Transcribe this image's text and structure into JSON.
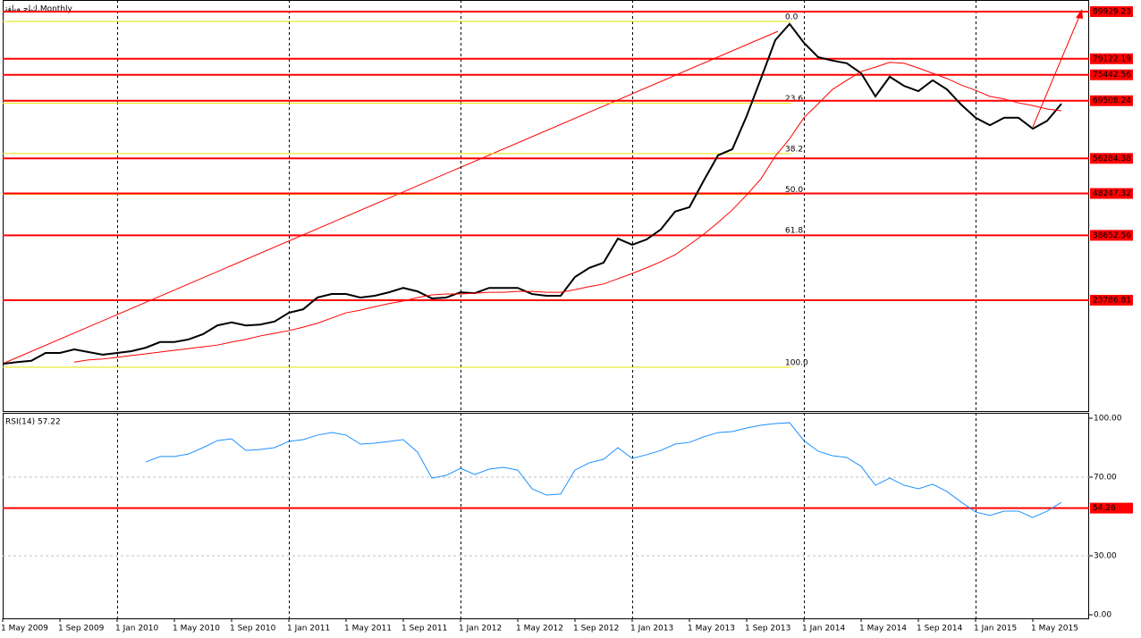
{
  "chart_data": [
    {
      "type": "line",
      "title": "ﻙﻠﺟ ﻪﻳﺎﻘﺗ,Monthly",
      "categories": [
        "1 May 2009",
        null,
        null,
        null,
        "1 Sep 2009",
        null,
        null,
        null,
        "1 Jan 2010",
        null,
        null,
        null,
        "1 May 2010",
        null,
        null,
        null,
        "1 Sep 2010",
        null,
        null,
        null,
        "1 Jan 2011",
        null,
        null,
        null,
        "1 May 2011",
        null,
        null,
        null,
        "1 Sep 2011",
        null,
        null,
        null,
        "1 Jan 2012",
        null,
        null,
        null,
        "1 May 2012",
        null,
        null,
        null,
        "1 Sep 2012",
        null,
        null,
        null,
        "1 Jan 2013",
        null,
        null,
        null,
        "1 May 2013",
        null,
        null,
        null,
        "1 Sep 2013",
        null,
        null,
        null,
        "1 Jan 2014",
        null,
        null,
        null,
        "1 May 2014",
        null,
        null,
        null,
        "1 Sep 2014",
        null,
        null,
        null,
        "1 Jan 2015",
        null,
        null,
        null,
        "1 May 2015",
        null,
        null
      ],
      "series": [
        {
          "color": "#000000",
          "values": [
            9200,
            9600,
            9900,
            11700,
            11700,
            12500,
            11900,
            11300,
            11700,
            12100,
            12900,
            14200,
            14200,
            14800,
            16000,
            18000,
            18700,
            18000,
            18200,
            18900,
            20900,
            21700,
            24400,
            25200,
            25200,
            24400,
            24800,
            25600,
            26600,
            25800,
            24200,
            24400,
            25600,
            25400,
            26600,
            26600,
            26600,
            25200,
            24800,
            24800,
            29100,
            31200,
            32400,
            37900,
            36500,
            37700,
            40000,
            44100,
            45100,
            51200,
            57000,
            58400,
            66000,
            74600,
            83400,
            87100,
            82800,
            79500,
            78700,
            78100,
            75800,
            70500,
            75000,
            72900,
            71700,
            74200,
            72100,
            68600,
            65600,
            63900,
            65600,
            65600,
            63100,
            64900,
            68800
          ]
        },
        {
          "color": "#ff0000",
          "values": [
            null,
            null,
            null,
            null,
            null,
            9600,
            10100,
            10300,
            10700,
            11100,
            11500,
            11900,
            12300,
            12700,
            13100,
            13500,
            14200,
            14800,
            15600,
            16200,
            16800,
            17600,
            18500,
            19700,
            20900,
            21500,
            22300,
            23000,
            23600,
            24400,
            25000,
            25200,
            25200,
            25400,
            25600,
            25600,
            25800,
            25800,
            25600,
            25600,
            26200,
            26900,
            27500,
            28700,
            29900,
            31200,
            32600,
            34200,
            36500,
            38900,
            41600,
            44500,
            47900,
            51600,
            56800,
            60800,
            65600,
            68800,
            72100,
            74200,
            76200,
            77200,
            78300,
            78100,
            77000,
            75800,
            74600,
            73100,
            71900,
            70500,
            69900,
            69000,
            68400,
            67600,
            67200
          ]
        }
      ],
      "ylim": [
        -1617,
        92591
      ],
      "levels": [
        89929.23,
        79122.19,
        75442.56,
        69508.24,
        56284.38,
        48247.32,
        38652.56,
        23786.81
      ],
      "level_color": "#ff0000",
      "fib_high": 87676,
      "fib_low": 8418,
      "fib_color": "#e6e600",
      "fib_levels": [
        {
          "value": 0,
          "label": "0.0"
        },
        23.6,
        38.2,
        {
          "value": 50,
          "label": "50.0"
        },
        61.8,
        {
          "value": 100,
          "label": "100.0"
        }
      ]
    },
    {
      "type": "line",
      "title": "RSI(14) 57.22",
      "series": [
        {
          "color": "#1e90ff",
          "values": [
            null,
            null,
            null,
            null,
            null,
            null,
            null,
            null,
            null,
            null,
            77.7,
            80.5,
            80.5,
            81.8,
            85.0,
            88.6,
            89.5,
            83.6,
            84.1,
            85.0,
            88.2,
            89.1,
            91.4,
            92.7,
            91.4,
            86.8,
            87.3,
            88.2,
            89.1,
            82.7,
            69.5,
            70.9,
            74.5,
            71.4,
            74.1,
            75.0,
            73.6,
            64.1,
            60.9,
            61.4,
            73.6,
            77.3,
            79.1,
            85.0,
            79.5,
            81.4,
            83.6,
            86.8,
            87.7,
            90.5,
            92.7,
            93.2,
            95.0,
            96.4,
            97.3,
            97.7,
            88.6,
            83.2,
            80.9,
            80.0,
            75.5,
            65.9,
            69.5,
            65.9,
            64.1,
            66.4,
            62.7,
            57.3,
            52.3,
            50.5,
            52.7,
            52.7,
            49.5,
            52.7,
            57.2
          ]
        }
      ],
      "ylim": [
        -1.82,
        102.73
      ],
      "yticks": [
        {
          "value": 100,
          "label": "100.00"
        },
        {
          "value": 70,
          "label": "70.00"
        },
        {
          "value": 30,
          "label": "30.00"
        },
        {
          "value": 0,
          "label": "0.00"
        }
      ],
      "levels": [
        54.26
      ],
      "level_color": "#ff0000"
    }
  ]
}
